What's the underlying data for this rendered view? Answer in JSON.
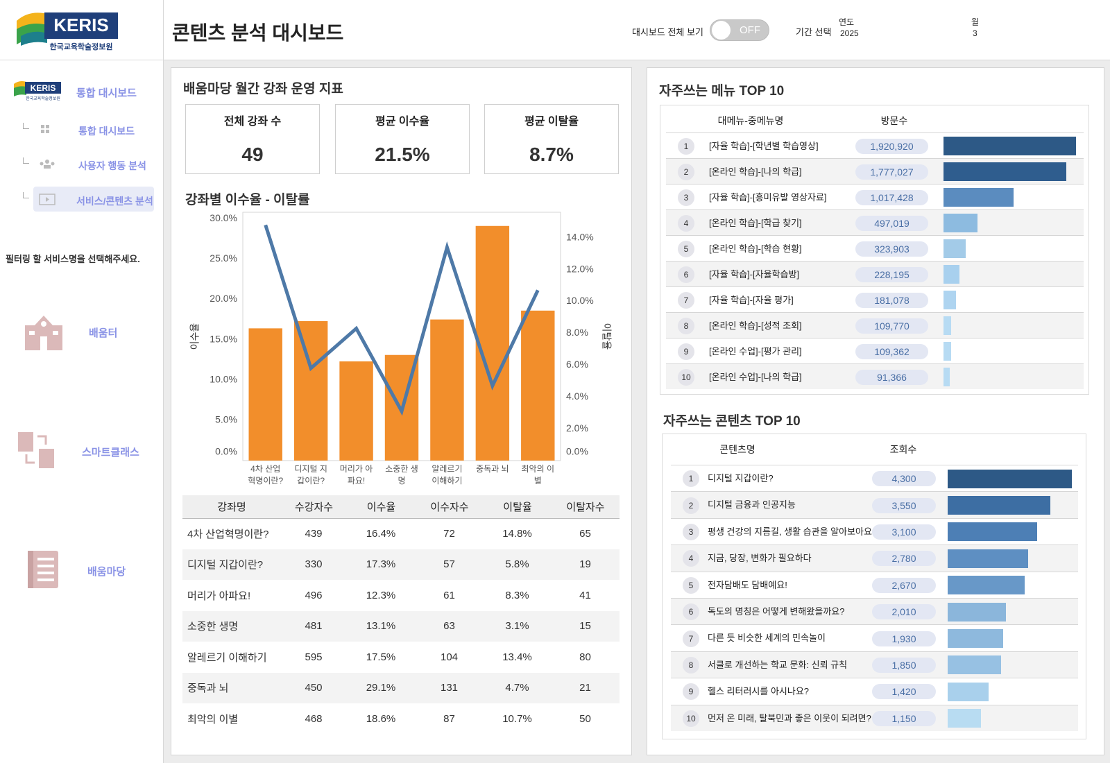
{
  "logo": {
    "name": "KERIS",
    "subtitle": "한국교육학술정보원"
  },
  "header": {
    "title": "콘텐츠 분석 대시보드",
    "toggle_label": "대시보드 전체 보기",
    "toggle_state": "OFF",
    "period_label": "기간 선택",
    "year_label": "연도",
    "year": "2025",
    "month_label": "월",
    "month": "3"
  },
  "sidebar": {
    "nav": [
      "통합 대시보드",
      "통합 대시보드",
      "사용자 행동 분석",
      "서비스/콘텐츠 분석"
    ],
    "filter_prompt": "필터링 할 서비스명을 선택해주세요.",
    "services": [
      "배움터",
      "스마트클래스",
      "배움마당"
    ]
  },
  "kpi": {
    "title": "배움마당 월간 강좌 운영 지표",
    "cards": [
      {
        "label": "전체 강좌 수",
        "value": "49"
      },
      {
        "label": "평균 이수율",
        "value": "21.5%"
      },
      {
        "label": "평균 이탈율",
        "value": "8.7%"
      }
    ]
  },
  "chart_data": {
    "type": "bar_line",
    "title": "강좌별 이수율 - 이탈률",
    "categories": [
      "4차 산업혁명이란?",
      "디지털 지갑이란?",
      "머리가 아파요!",
      "소중한 생명",
      "알레르기 이해하기",
      "중독과 뇌",
      "최악의 이별"
    ],
    "series": [
      {
        "name": "이수율",
        "type": "bar",
        "color": "#f28e2b",
        "axis": "y",
        "values": [
          16.4,
          17.3,
          12.3,
          13.1,
          17.5,
          29.1,
          18.6
        ]
      },
      {
        "name": "이탈율",
        "type": "line",
        "color": "#4e79a7",
        "axis": "y2",
        "values": [
          14.8,
          5.8,
          8.3,
          3.1,
          13.4,
          4.7,
          10.7
        ]
      }
    ],
    "ylim": [
      0,
      30.8
    ],
    "yticks": [
      {
        "value": 0,
        "label": "0.0%"
      },
      {
        "value": 5,
        "label": "5.0%"
      },
      {
        "value": 10,
        "label": "10.0%"
      },
      {
        "value": 15,
        "label": "15.0%"
      },
      {
        "value": 20,
        "label": "20.0%"
      },
      {
        "value": 25,
        "label": "25.0%"
      },
      {
        "value": 30,
        "label": "30.0%"
      }
    ],
    "y2lim": [
      0,
      15.6
    ],
    "y2ticks": [
      {
        "value": 0,
        "label": "0.0%"
      },
      {
        "value": 2,
        "label": "2.0%"
      },
      {
        "value": 4,
        "label": "4.0%"
      },
      {
        "value": 6,
        "label": "6.0%"
      },
      {
        "value": 8,
        "label": "8.0%"
      },
      {
        "value": 10,
        "label": "10.0%"
      },
      {
        "value": 12,
        "label": "12.0%"
      },
      {
        "value": 14,
        "label": "14.0%"
      }
    ],
    "grid": false
  },
  "course_table": {
    "columns": [
      "강좌명",
      "수강자수",
      "이수율",
      "이수자수",
      "이탈율",
      "이탈자수"
    ],
    "rows": [
      [
        "4차 산업혁명이란?",
        "439",
        "16.4%",
        "72",
        "14.8%",
        "65"
      ],
      [
        "디지털 지갑이란?",
        "330",
        "17.3%",
        "57",
        "5.8%",
        "19"
      ],
      [
        "머리가 아파요!",
        "496",
        "12.3%",
        "61",
        "8.3%",
        "41"
      ],
      [
        "소중한 생명",
        "481",
        "13.1%",
        "63",
        "3.1%",
        "15"
      ],
      [
        "알레르기 이해하기",
        "595",
        "17.5%",
        "104",
        "13.4%",
        "80"
      ],
      [
        "중독과 뇌",
        "450",
        "29.1%",
        "131",
        "4.7%",
        "21"
      ],
      [
        "최악의 이별",
        "468",
        "18.6%",
        "87",
        "10.7%",
        "50"
      ]
    ]
  },
  "menu_top10": {
    "title": "자주쓰는 메뉴 TOP 10",
    "columns": [
      "대메뉴-중메뉴명",
      "방문수"
    ],
    "rows": [
      {
        "rank": 1,
        "name": "[자율 학습]-[학년별 학습영상]",
        "visits": 1920920,
        "visits_label": "1,920,920",
        "color": "#2d5986"
      },
      {
        "rank": 2,
        "name": "[온라인 학습]-[나의 학급]",
        "visits": 1777027,
        "visits_label": "1,777,027",
        "color": "#2f5d8e"
      },
      {
        "rank": 3,
        "name": "[자율 학습]-[흥미유발 영상자료]",
        "visits": 1017428,
        "visits_label": "1,017,428",
        "color": "#5b8cbf"
      },
      {
        "rank": 4,
        "name": "[온라인 학습]-[학급 찾기]",
        "visits": 497019,
        "visits_label": "497,019",
        "color": "#8dbbe0"
      },
      {
        "rank": 5,
        "name": "[온라인 학습]-[학습 현황]",
        "visits": 323903,
        "visits_label": "323,903",
        "color": "#a3cbe8"
      },
      {
        "rank": 6,
        "name": "[자율 학습]-[자율학습방]",
        "visits": 228195,
        "visits_label": "228,195",
        "color": "#a8d0ee"
      },
      {
        "rank": 7,
        "name": "[자율 학습]-[자율 평가]",
        "visits": 181078,
        "visits_label": "181,078",
        "color": "#aed4f0"
      },
      {
        "rank": 8,
        "name": "[온라인 학습]-[성적 조회]",
        "visits": 109770,
        "visits_label": "109,770",
        "color": "#b7dbf3"
      },
      {
        "rank": 9,
        "name": "[온라인 수업]-[평가 관리]",
        "visits": 109362,
        "visits_label": "109,362",
        "color": "#b7dbf3"
      },
      {
        "rank": 10,
        "name": "[온라인 수업]-[나의 학급]",
        "visits": 91366,
        "visits_label": "91,366",
        "color": "#b7dbf3"
      }
    ]
  },
  "content_top10": {
    "title": "자주쓰는 콘텐츠 TOP 10",
    "columns": [
      "콘텐츠명",
      "조회수"
    ],
    "rows": [
      {
        "rank": 1,
        "title": "디지털 지갑이란?",
        "views": 4300,
        "views_label": "4,300",
        "color": "#2d5986"
      },
      {
        "rank": 2,
        "title": "디지털 금융과 인공지능",
        "views": 3550,
        "views_label": "3,550",
        "color": "#3d6ea3"
      },
      {
        "rank": 3,
        "title": "평생 건강의 지름길, 생활 습관을 알아보아요",
        "views": 3100,
        "views_label": "3,100",
        "color": "#4d7fb5"
      },
      {
        "rank": 4,
        "title": "지금, 당장, 변화가 필요하다",
        "views": 2780,
        "views_label": "2,780",
        "color": "#5e8fc2"
      },
      {
        "rank": 5,
        "title": "전자담배도 담배예요!",
        "views": 2670,
        "views_label": "2,670",
        "color": "#6898c8"
      },
      {
        "rank": 6,
        "title": "독도의 명칭은 어떻게 변해왔을까요?",
        "views": 2010,
        "views_label": "2,010",
        "color": "#8bb6db"
      },
      {
        "rank": 7,
        "title": "다른 듯 비슷한 세계의 민속놀이",
        "views": 1930,
        "views_label": "1,930",
        "color": "#8eb9dd"
      },
      {
        "rank": 8,
        "title": "서클로 개선하는 학교 문화: 신뢰 규칙",
        "views": 1850,
        "views_label": "1,850",
        "color": "#97c1e3"
      },
      {
        "rank": 9,
        "title": "헬스 리터러시를 아시나요?",
        "views": 1420,
        "views_label": "1,420",
        "color": "#a9d0ec"
      },
      {
        "rank": 10,
        "title": "먼저 온 미래, 탈북민과 좋은 이웃이 되려면?",
        "views": 1150,
        "views_label": "1,150",
        "color": "#b8dcf2"
      }
    ]
  }
}
